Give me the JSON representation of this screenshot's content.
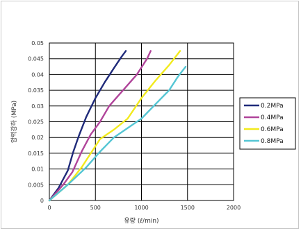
{
  "chart_data": {
    "type": "line",
    "xlabel": "유량 (ℓ/min)",
    "ylabel": "압력강하 (MPa)",
    "xlim": [
      0,
      2000
    ],
    "ylim": [
      0,
      0.05
    ],
    "x_ticks": [
      "0",
      "500",
      "1000",
      "1500",
      "2000"
    ],
    "y_ticks": [
      "0",
      "0.005",
      "0.01",
      "0.015",
      "0.02",
      "0.025",
      "0.03",
      "0.035",
      "0.04",
      "0.045",
      "0.05"
    ],
    "grid": true,
    "legend_position": "right",
    "series": [
      {
        "name": "0.2MPa",
        "color": "#1f2a7a",
        "x": [
          0,
          100,
          200,
          260,
          320,
          400,
          500,
          600,
          700,
          780,
          830
        ],
        "y": [
          0,
          0.004,
          0.0095,
          0.0155,
          0.0205,
          0.0265,
          0.0325,
          0.0375,
          0.042,
          0.0455,
          0.0475
        ]
      },
      {
        "name": "0.4MPa",
        "color": "#b0449a",
        "x": [
          0,
          150,
          250,
          350,
          450,
          550,
          650,
          800,
          950,
          1060,
          1100
        ],
        "y": [
          0,
          0.005,
          0.009,
          0.0155,
          0.021,
          0.025,
          0.03,
          0.035,
          0.04,
          0.045,
          0.0475
        ]
      },
      {
        "name": "0.6MPa",
        "color": "#f2ea1c",
        "x": [
          0,
          200,
          350,
          450,
          550,
          700,
          850,
          1000,
          1150,
          1300,
          1420
        ],
        "y": [
          0,
          0.005,
          0.0105,
          0.015,
          0.0195,
          0.0225,
          0.026,
          0.0325,
          0.038,
          0.043,
          0.0475
        ]
      },
      {
        "name": "0.8MPa",
        "color": "#55c6d4",
        "x": [
          0,
          200,
          400,
          550,
          700,
          850,
          1000,
          1150,
          1300,
          1400,
          1480
        ],
        "y": [
          0,
          0.005,
          0.0105,
          0.0155,
          0.02,
          0.023,
          0.026,
          0.0305,
          0.035,
          0.0395,
          0.0425
        ]
      }
    ]
  }
}
